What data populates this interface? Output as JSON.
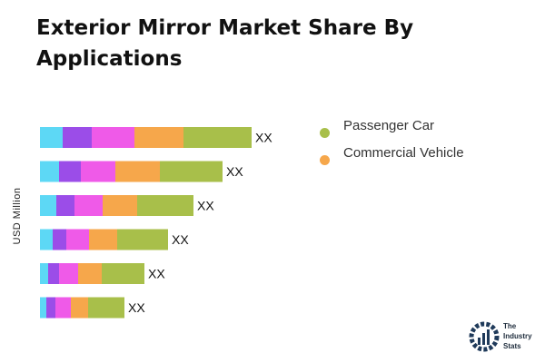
{
  "title": "Exterior Mirror Market Share By Applications",
  "chart_data": {
    "type": "bar",
    "orientation": "horizontal",
    "stacked": true,
    "ylabel": "USD Million",
    "bars": [
      {
        "label": "XX",
        "segments": [
          25,
          32,
          47,
          54,
          75
        ]
      },
      {
        "label": "XX",
        "segments": [
          21,
          24,
          38,
          49,
          69
        ]
      },
      {
        "label": "XX",
        "segments": [
          18,
          20,
          31,
          38,
          62
        ]
      },
      {
        "label": "XX",
        "segments": [
          14,
          15,
          25,
          31,
          56
        ]
      },
      {
        "label": "XX",
        "segments": [
          9,
          12,
          21,
          26,
          47
        ]
      },
      {
        "label": "XX",
        "segments": [
          7,
          10,
          17,
          19,
          40
        ]
      }
    ],
    "segment_colors": [
      "#5dd8f5",
      "#9b4de8",
      "#ef5ae8",
      "#f6a74b",
      "#a8bf4a"
    ],
    "legend": [
      {
        "name": "Passenger Car",
        "color": "#a8bf4a"
      },
      {
        "name": "Commercial Vehicle",
        "color": "#f6a74b"
      }
    ],
    "legend_position": "right",
    "grid": false
  },
  "logo": {
    "line1": "The",
    "line2": "Industry",
    "line3": "Stats"
  }
}
